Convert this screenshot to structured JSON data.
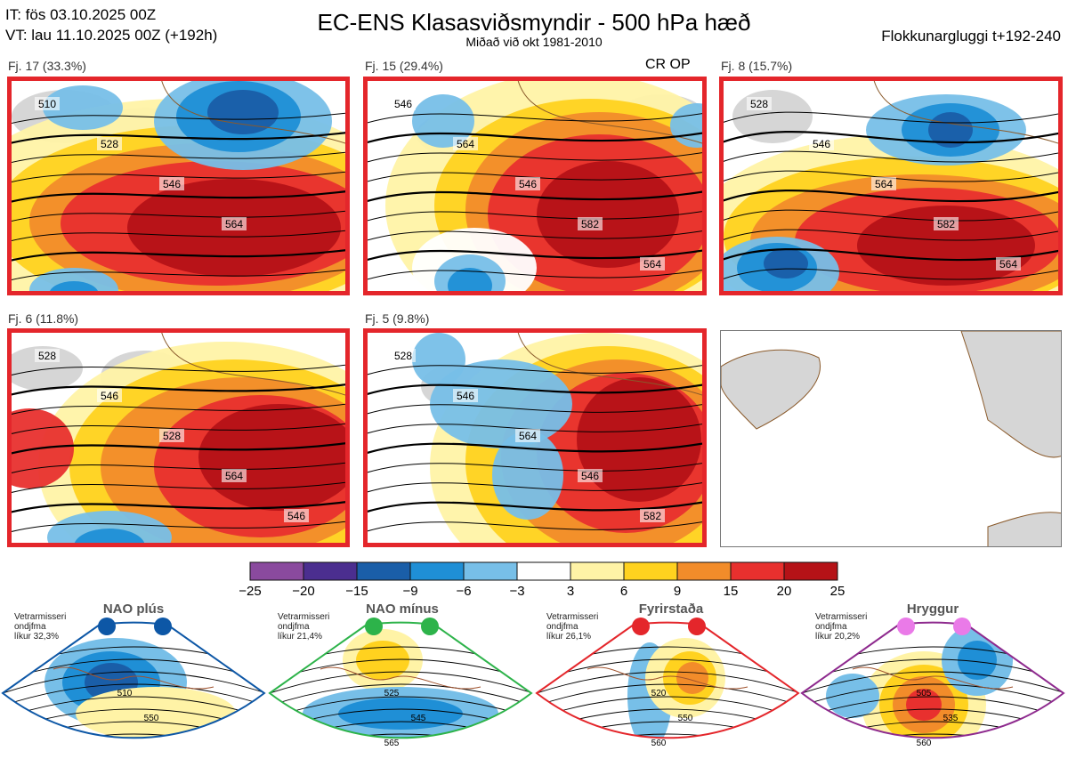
{
  "header": {
    "it": "IT: fös 03.10.2025 00Z",
    "vt": "VT: lau 11.10.2025 00Z  (+192h)",
    "title": "EC-ENS Klasasviðsmyndir - 500 hPa hæð",
    "subtitle": "Miðað við okt 1981-2010",
    "window": "Flokkunargluggi t+192-240"
  },
  "op_label": "CR OP",
  "panels": [
    {
      "label": "Fj. 17 (33.3%)",
      "contours": [
        "510",
        "528",
        "546",
        "564"
      ]
    },
    {
      "label": "Fj. 15 (29.4%)",
      "contours": [
        "546",
        "564",
        "546",
        "582",
        "564"
      ]
    },
    {
      "label": "Fj. 8 (15.7%)",
      "contours": [
        "528",
        "546",
        "564",
        "582",
        "564"
      ]
    },
    {
      "label": "Fj. 6 (11.8%)",
      "contours": [
        "528",
        "546",
        "528",
        "564",
        "546"
      ]
    },
    {
      "label": "Fj. 5 (9.8%)",
      "contours": [
        "528",
        "546",
        "564",
        "546",
        "582"
      ]
    }
  ],
  "chart_data": {
    "type": "heatmap",
    "title": "EC-ENS Klasasviðsmyndir - 500 hPa hæð",
    "colorbar": {
      "ticks": [
        "−25",
        "−20",
        "−15",
        "−9",
        "−6",
        "−3",
        "3",
        "6",
        "9",
        "15",
        "20",
        "25"
      ],
      "colors": [
        "#8a4a9e",
        "#4b2e8f",
        "#1a5ea8",
        "#1f8fd6",
        "#77bfe8",
        "#ffffff",
        "#fff3a6",
        "#ffd21f",
        "#f28c2a",
        "#e8302e",
        "#b51217"
      ]
    },
    "clusters": [
      {
        "name": "Fj. 17",
        "percent": 33.3
      },
      {
        "name": "Fj. 15",
        "percent": 29.4
      },
      {
        "name": "Fj. 8",
        "percent": 15.7
      },
      {
        "name": "Fj. 6",
        "percent": 11.8
      },
      {
        "name": "Fj. 5",
        "percent": 9.8
      }
    ],
    "regimes": [
      {
        "name": "NAO plús",
        "label": "Vetrarmisseri\nondjfma\nlíkur 32,3%",
        "contours": [
          "510",
          "550"
        ],
        "dot_color": "#0d57a6",
        "frame_color": "#0d57a6"
      },
      {
        "name": "NAO mínus",
        "label": "Vetrarmisseri\nondjfma\nlíkur 21,4%",
        "contours": [
          "525",
          "545",
          "565"
        ],
        "dot_color": "#2db34a",
        "frame_color": "#2db34a"
      },
      {
        "name": "Fyrirstaða",
        "label": "Vetrarmisseri\nondjfma\nlíkur 26,1%",
        "contours": [
          "520",
          "550",
          "560"
        ],
        "dot_color": "#e4262b",
        "frame_color": "#e4262b"
      },
      {
        "name": "Hryggur",
        "label": "Vetrarmisseri\nondjfma\nlíkur 20,2%",
        "contours": [
          "505",
          "535",
          "560"
        ],
        "dot_color": "#ea7ae8",
        "frame_color": "#8e2a8e"
      }
    ]
  }
}
